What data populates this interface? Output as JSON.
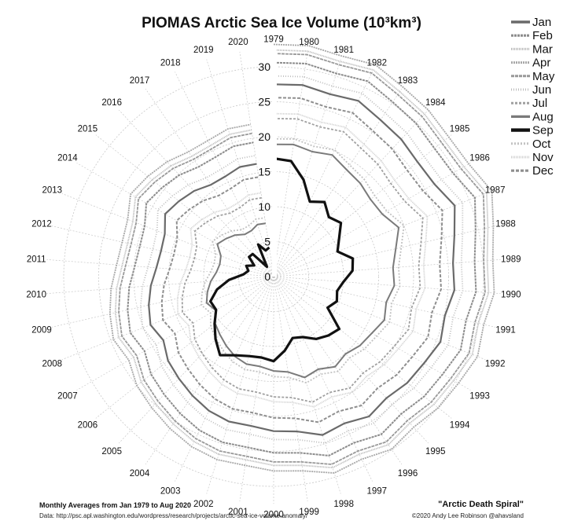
{
  "chart_data": {
    "type": "polar-line",
    "title": "PIOMAS Arctic Sea Ice Volume (10³km³)",
    "radial_ticks": [
      0,
      5,
      10,
      15,
      20,
      25,
      30
    ],
    "radial_range": [
      0,
      33
    ],
    "years": [
      1979,
      1980,
      1981,
      1982,
      1983,
      1984,
      1985,
      1986,
      1987,
      1988,
      1989,
      1990,
      1991,
      1992,
      1993,
      1994,
      1995,
      1996,
      1997,
      1998,
      1999,
      2000,
      2001,
      2002,
      2003,
      2004,
      2005,
      2006,
      2007,
      2008,
      2009,
      2010,
      2011,
      2012,
      2013,
      2014,
      2015,
      2016,
      2017,
      2018,
      2019,
      2020
    ],
    "highlight_series": "Sep",
    "legend_position": "top-right",
    "series": [
      {
        "name": "Jan",
        "color": "#6a6a6a",
        "width": 2.2,
        "dash": "",
        "values": [
          27.5,
          27.7,
          27.3,
          27.9,
          27.1,
          26.8,
          26.3,
          26.5,
          27.8,
          26.5,
          25.7,
          25.9,
          25.1,
          25.6,
          24.8,
          24.4,
          23.7,
          24.2,
          23.3,
          23.7,
          22.4,
          22.1,
          21.6,
          21.7,
          21.3,
          20.6,
          19.9,
          19.3,
          18.2,
          18.9,
          18.3,
          17.6,
          16.8,
          16.5,
          16.7,
          17.9,
          17.3,
          16.7,
          15.9,
          15.9,
          16.4,
          16.3
        ]
      },
      {
        "name": "Feb",
        "color": "#8c8c8c",
        "width": 2.0,
        "dash": "3 1",
        "values": [
          30.6,
          30.8,
          30.4,
          31.0,
          30.2,
          29.9,
          29.4,
          29.6,
          30.9,
          29.6,
          28.8,
          29.0,
          28.2,
          28.7,
          27.9,
          27.5,
          26.8,
          27.3,
          26.4,
          26.8,
          25.5,
          25.2,
          24.7,
          24.8,
          24.4,
          23.7,
          23.0,
          22.4,
          21.3,
          22.0,
          21.4,
          20.7,
          19.9,
          19.6,
          19.8,
          21.0,
          20.4,
          19.8,
          19.0,
          19.0,
          19.5,
          19.4
        ]
      },
      {
        "name": "Mar",
        "color": "#b3b3b3",
        "width": 1.8,
        "dash": "1 1",
        "values": [
          32.4,
          32.6,
          32.2,
          32.8,
          32.0,
          31.7,
          31.2,
          31.4,
          32.7,
          31.4,
          30.6,
          30.8,
          30.0,
          30.5,
          29.7,
          29.3,
          28.6,
          29.1,
          28.2,
          28.6,
          27.3,
          27.0,
          26.5,
          26.6,
          26.2,
          25.5,
          24.8,
          24.2,
          23.1,
          23.8,
          23.2,
          22.5,
          21.7,
          21.4,
          21.6,
          22.8,
          22.2,
          21.6,
          20.8,
          20.8,
          21.3,
          21.2
        ]
      },
      {
        "name": "Apr",
        "color": "#a8a8a8",
        "width": 1.8,
        "dash": "2 1",
        "values": [
          33.2,
          33.4,
          33.0,
          33.6,
          32.8,
          32.5,
          32.0,
          32.2,
          33.5,
          32.2,
          31.4,
          31.6,
          30.8,
          31.3,
          30.5,
          30.1,
          29.4,
          29.9,
          29.0,
          29.4,
          28.1,
          27.8,
          27.3,
          27.4,
          27.0,
          26.3,
          25.6,
          25.0,
          23.9,
          24.6,
          24.0,
          23.3,
          22.5,
          22.2,
          22.4,
          23.6,
          23.0,
          22.4,
          21.6,
          21.6,
          22.1,
          22.0
        ]
      },
      {
        "name": "May",
        "color": "#999999",
        "width": 1.8,
        "dash": "4 1",
        "values": [
          31.9,
          32.1,
          31.7,
          32.3,
          31.5,
          31.2,
          30.7,
          30.9,
          32.2,
          30.9,
          30.1,
          30.3,
          29.5,
          30.0,
          29.2,
          28.8,
          28.1,
          28.6,
          27.7,
          28.1,
          26.8,
          26.5,
          26.0,
          26.1,
          25.7,
          25.0,
          24.3,
          23.7,
          22.6,
          23.3,
          22.7,
          22.0,
          21.2,
          20.9,
          21.1,
          22.3,
          21.7,
          21.1,
          20.3,
          20.3,
          20.8,
          20.7
        ]
      },
      {
        "name": "Jun",
        "color": "#bdbdbd",
        "width": 1.8,
        "dash": "1 2",
        "values": [
          28.7,
          28.9,
          28.5,
          29.1,
          28.3,
          28.0,
          27.5,
          27.7,
          29.0,
          27.7,
          26.9,
          27.1,
          26.3,
          26.8,
          26.0,
          25.6,
          24.9,
          25.4,
          24.5,
          24.9,
          23.6,
          23.3,
          22.8,
          22.9,
          22.5,
          21.8,
          21.1,
          20.5,
          19.4,
          20.1,
          19.5,
          18.8,
          18.0,
          17.7,
          17.9,
          19.1,
          18.5,
          17.9,
          17.1,
          17.1,
          17.6,
          17.5
        ]
      },
      {
        "name": "Jul",
        "color": "#a0a0a0",
        "width": 1.8,
        "dash": "3 2",
        "values": [
          22.6,
          22.8,
          22.4,
          23.0,
          22.2,
          21.9,
          21.4,
          21.6,
          22.9,
          21.6,
          20.8,
          21.0,
          20.2,
          20.7,
          19.9,
          19.5,
          18.8,
          19.3,
          18.4,
          18.8,
          17.5,
          17.2,
          16.7,
          16.8,
          16.4,
          15.7,
          15.0,
          14.4,
          13.3,
          14.0,
          13.4,
          12.7,
          11.9,
          11.6,
          11.8,
          13.0,
          12.4,
          11.8,
          11.0,
          11.0,
          11.5,
          11.4
        ]
      },
      {
        "name": "Aug",
        "color": "#7a7a7a",
        "width": 2.0,
        "dash": "",
        "values": [
          18.9,
          19.1,
          18.7,
          19.3,
          18.5,
          18.2,
          17.7,
          17.9,
          19.2,
          17.9,
          17.1,
          17.3,
          16.5,
          17.0,
          16.2,
          15.8,
          15.1,
          15.6,
          14.7,
          15.1,
          13.8,
          13.5,
          13.0,
          13.1,
          12.7,
          12.0,
          11.3,
          10.7,
          9.6,
          10.3,
          9.7,
          9.0,
          8.2,
          7.9,
          8.1,
          9.3,
          8.7,
          8.1,
          7.3,
          7.3,
          7.8,
          7.7
        ]
      },
      {
        "name": "Sep",
        "color": "#111111",
        "width": 3.2,
        "dash": "",
        "values": [
          16.9,
          16.7,
          14.5,
          11.9,
          12.9,
          11.6,
          12.3,
          10.8,
          9.8,
          11.6,
          11.3,
          10.0,
          9.3,
          9.7,
          8.9,
          12.0,
          11.5,
          10.8,
          9.6,
          9.2,
          10.7,
          12.1,
          11.7,
          11.9,
          12.5,
          13.6,
          12.2,
          10.8,
          9.5,
          9.7,
          8.3,
          6.4,
          4.3,
          3.7,
          4.2,
          3.2,
          4.5,
          4.4,
          1.7,
          5.1,
          3.9,
          4.2
        ]
      },
      {
        "name": "Oct",
        "color": "#c2c2c2",
        "width": 1.8,
        "dash": "2 2",
        "values": [
          19.7,
          19.9,
          19.5,
          20.1,
          19.3,
          19.0,
          18.5,
          18.7,
          20.0,
          18.7,
          17.9,
          18.1,
          17.3,
          17.8,
          17.0,
          16.6,
          15.9,
          16.4,
          15.5,
          15.9,
          14.6,
          14.3,
          13.8,
          13.9,
          13.5,
          12.8,
          12.1,
          11.5,
          10.4,
          11.1,
          10.5,
          9.8,
          9.0,
          8.7,
          8.9,
          10.1,
          9.5,
          8.9,
          8.1,
          8.1,
          8.6,
          8.5
        ]
      },
      {
        "name": "Nov",
        "color": "#cfcfcf",
        "width": 1.8,
        "dash": "1 1",
        "values": [
          23.3,
          23.5,
          23.1,
          23.7,
          22.9,
          22.6,
          22.1,
          22.3,
          23.6,
          22.3,
          21.5,
          21.7,
          20.9,
          21.4,
          20.6,
          20.2,
          19.5,
          20.0,
          19.1,
          19.5,
          18.2,
          17.9,
          17.4,
          17.5,
          17.1,
          16.4,
          15.7,
          15.1,
          14.0,
          14.7,
          14.1,
          13.4,
          12.6,
          12.3,
          12.5,
          13.7,
          13.1,
          12.5,
          11.7,
          11.7,
          12.2,
          12.1
        ]
      },
      {
        "name": "Dec",
        "color": "#8f8f8f",
        "width": 2.0,
        "dash": "4 2",
        "values": [
          25.6,
          25.8,
          25.4,
          26.0,
          25.2,
          24.9,
          24.4,
          24.6,
          25.9,
          24.6,
          23.8,
          24.0,
          23.2,
          23.7,
          22.9,
          22.5,
          21.8,
          22.3,
          21.4,
          21.8,
          20.5,
          20.2,
          19.7,
          19.8,
          19.4,
          18.7,
          18.0,
          17.4,
          16.3,
          17.0,
          16.4,
          15.7,
          14.9,
          14.6,
          14.8,
          16.0,
          15.4,
          14.8,
          14.0,
          14.0,
          14.5,
          14.4
        ]
      }
    ]
  },
  "footer": {
    "left_title": "Monthly Averages from Jan 1979 to Aug 2020",
    "left_source": "Data:  http://psc.apl.washington.edu/wordpress/research/projects/arctic-sea-ice-volume-anomaly/",
    "right_title": "\"Arctic Death Spiral\"",
    "right_credit": "©2020 Andy Lee Robinson @ahavsland"
  }
}
